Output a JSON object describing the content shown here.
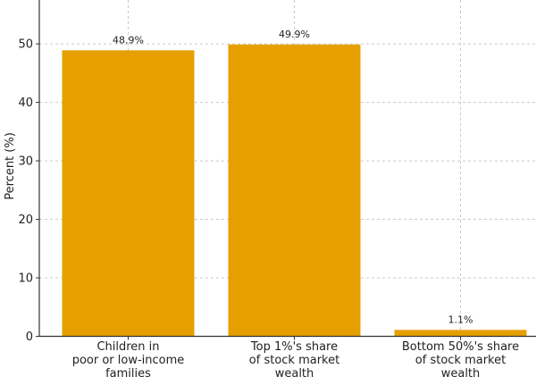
{
  "chart_data": {
    "type": "bar",
    "categories": [
      "Children in poor or low-income families",
      "Top 1%'s share of stock market wealth",
      "Bottom 50%'s share of stock market wealth"
    ],
    "category_label_lines": [
      [
        "Children in",
        "poor or low-income",
        "families"
      ],
      [
        "Top 1%'s share",
        "of stock market",
        "wealth"
      ],
      [
        "Bottom 50%'s share",
        "of stock market",
        "wealth"
      ]
    ],
    "values": [
      48.9,
      49.9,
      1.1
    ],
    "data_labels": [
      "48.9%",
      "49.9%",
      "1.1%"
    ],
    "ylabel": "Percent (%)",
    "yticks": [
      0,
      10,
      20,
      30,
      40,
      50
    ],
    "ylim": [
      0,
      57.5
    ],
    "grid": true,
    "bar_color": "#e5a000"
  }
}
